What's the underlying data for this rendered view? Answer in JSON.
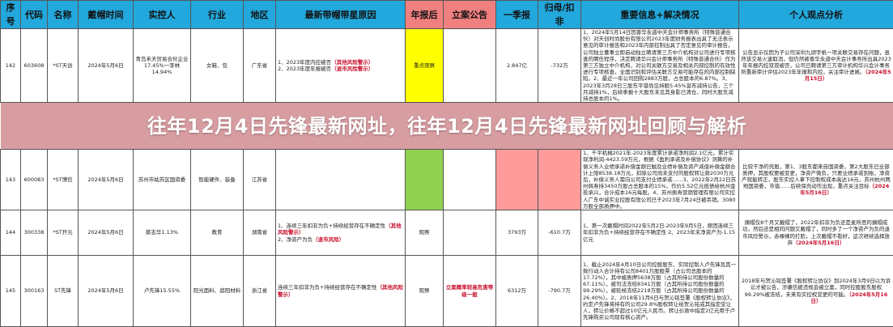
{
  "headers": [
    "序号",
    "代码",
    "名称",
    "戴帽时间",
    "实控人",
    "行业",
    "地区",
    "最新带帽带星原因",
    "年报后",
    "立案公告",
    "一季报",
    "归母/扣非",
    "重要信息+解决情况",
    "个人观点分析"
  ],
  "rows": [
    {
      "no": "142",
      "code": "603608",
      "name": "*ST天创",
      "date": "2024年5月6日",
      "controller": "青岛禾天贸易合伙企业17.45%一李林14.94%",
      "industry": "女鞋、包",
      "region": "广东省",
      "reason": [
        {
          "t": "1、2023年度内控被否",
          "w": "（其他风险警示）"
        },
        {
          "t": "2、2023年度年报被否",
          "w": "（退市风险警示）"
        }
      ],
      "after": "重点观察",
      "filing": "",
      "q1": "2.847亿",
      "profit": "-732万",
      "info": "1、2024年5月14日因晋华永道中天会计师事务所（特殊普通合伙）对天创时尚股份有限公司2023年度财务报表出具了无法表示意见的审计报告和2023年内部控制出具了否定意见的审计报告，公司独立董事立即启动独立聘请第三方中介机构对公司进行专项核查的聘任程序，决定聘请华兴会计师事务所（特殊普通合伙）作为第三方独立中介机构，对公司关联方交易及相关内部控制的有效性进行专项核查，全面识别和评估关联方交易可能存在的内部控制缺陷。2、最近一年公司回购2883万股，占总股本的6.87%。3、2023年3月28日三股东平谱尚见持股5.45%宣布减持公告，三个月减持1%，后续季报十大股东未见其身影已清仓，同时大股东减持总股本的1%。",
      "view": "公告显示仅因为子公司深圳九颂宇帆一项关联交易存在问题，虽然该交易火速取消，但仍然被晋华永道中天会计事务所出具2023年年报内控双双被否，公司已聘请第三方审计机构华兴会计事务所重新审计评估2023年年报和内控，关注审计进展。",
      "viewDate": "（2024年5月15日）"
    },
    {
      "no": "143",
      "code": "600083",
      "name": "*ST博信",
      "date": "2024年5月6日",
      "controller": "苏州市姑苏区国资委",
      "industry": "智能硬件、装备",
      "region": "江苏省",
      "reason": [
        {
          "t": "",
          "w": ""
        },
        {
          "t": "",
          "w": ""
        }
      ],
      "after": "",
      "filing": "",
      "q1": "",
      "profit": "",
      "info": "1、千平机械2021年-2023年度累计承诺净利润2.1亿元，累计实现净利润-4423.59万元，根据《盈利承诺及补偿协议》测算的补偿义务人业绩承诺补偿金额已触及业绩补偿及资产减值补偿金额合计上限8538.18万元，扣除公司尚未支付的股权转让款2030万元后，补偿义务人需向公司支付业绩承诺……3、2022年2月22日苏州佩寿持3450万股占总股本的15%，作价5.52亿元抵债给杭州金投承兴，合计成本16元每股。4、苏州佩寿营销管理有限公司实控人广东中诚实业控股有限公司已于2023年7月24日被吊销。3080万股全部质押中。",
      "view": "比较干净的壳股，第1、3股东都来自国资委，第2大股东已全部质押，其股权要被变更，净资产微负，只要业绩承诺到账，净资产就能转正，股东实控人拿下控制权成本高达16元，苏州杭州两地国资委，市值……后续保壳动作出现，重点关注目标",
      "viewDate": "（2024年5月16日）"
    },
    {
      "no": "144",
      "code": "300338",
      "name": "*ST开元",
      "date": "2024年5月6日",
      "controller": "蔡志华1.13%",
      "industry": "教育",
      "region": "湖南省",
      "reason": [
        {
          "t": "1、连续三年扣非为负+持续经营存在不确定性",
          "w": "（其他风险警示）"
        },
        {
          "t": "2、净资产为负",
          "w": "（退市风险）"
        }
      ],
      "after": "观察",
      "filing": "",
      "q1": "3793万",
      "profit": "-610.7万",
      "info": "1、第一次戴帽时间2022年5月2日-2023年9月5日，原因连续三年扣非为负+持续经营存在不确定性 2、2023年末净资产为-1.15亿元",
      "view": "摘帽仅8个月又戴帽了，2022年扣非为负还是麦所思的摘帽成功，然后还是相同问题又戴帽了，同时多了一个净资产为负的退市风险警示，赤裸裸的打脸，上次戴帽不看好，这次继续选择放弃",
      "viewDate": "（2024年5月16日）"
    },
    {
      "no": "145",
      "code": "300163",
      "name": "ST先锋",
      "date": "2024年5月6日",
      "controller": "卢先锋15.55%",
      "industry": "阳光面料、遮阳材料",
      "region": "浙江省",
      "reason": [
        {
          "t": "连续三年扣非为负+持续经营存在不确定性",
          "w": "（其他风险警示）"
        }
      ],
      "after": "观察",
      "filing": "立案概率较高危害等级一般",
      "q1": "6312万",
      "profit": "-790.7万",
      "info": "1、截止2024年4月10日公司控股股东、实际控制人卢先锋及其一致行动人合计持有公司8401万股股票（占公司总股本的17.72%），其中被质押5638万股（占其所持公司股份数量的67.11%），被司法冻结8341万股（占其所持公司股份数量的99.29%），被轮候冻结2218万股（占其所持公司股份数量的26.40%）。2、2018年11月6日与贺沁铭签署《股权转让协议》，约定卢先锋将持有的公司29.8%股权转让给贺沁铭或其指定受让人，转让价格不超过10亿元人民币。转让价款中指定2亿元用于卢先锋购买公司现有核心资产。",
      "view": "2018年与贺沁铭签署《股权转让协议》到2024年3月9日以为诉讼才被公告，涉嫌信披违规会被立案，同时控股股东股权99.29%被冻结，未来有实控权变更的可能。",
      "viewDate": "（2024年5月16日）"
    }
  ],
  "banner": "往年12月4日先锋最新网址，往年12月4日先锋最新网址回顾与解析",
  "colors": {
    "header": "#22a8dc",
    "header_alert": "#f08080",
    "yellow": "#ffff00",
    "green": "#92d050",
    "pink": "#ff9b9b",
    "warning_text": "#c8102e"
  }
}
